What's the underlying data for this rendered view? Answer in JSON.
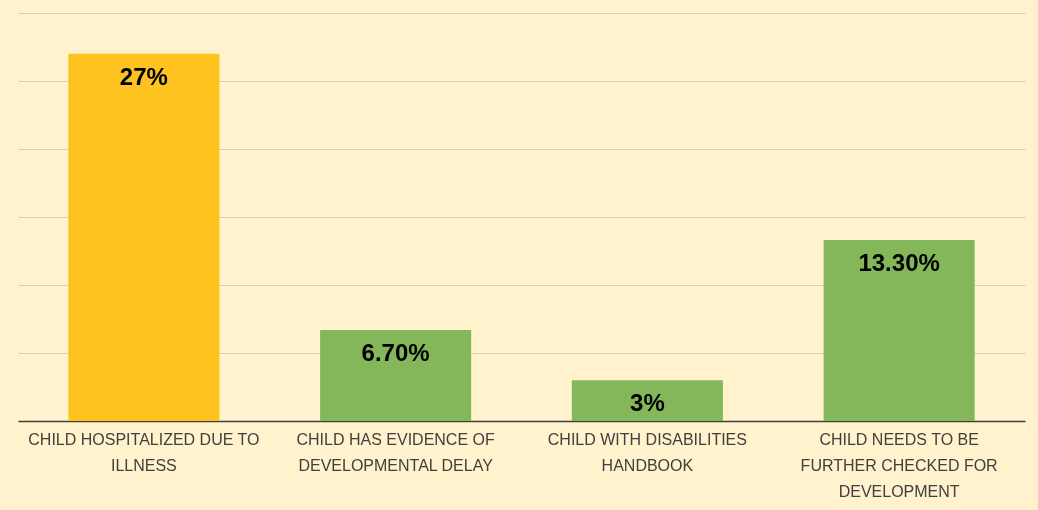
{
  "chart_data": {
    "type": "bar",
    "categories": [
      "CHILD HOSPITALIZED DUE TO ILLNESS",
      "CHILD HAS EVIDENCE OF DEVELOPMENTAL DELAY",
      "CHILD WITH DISABILITIES HANDBOOK",
      "CHILD NEEDS TO BE FURTHER CHECKED FOR DEVELOPMENT"
    ],
    "values": [
      27,
      6.7,
      3,
      13.3
    ],
    "value_labels": [
      "27%",
      "6.70%",
      "3%",
      "13.30%"
    ],
    "colors": [
      "#ffc31f",
      "#84b75a",
      "#84b75a",
      "#84b75a"
    ],
    "ylim": [
      0,
      30
    ],
    "yticks": [
      {
        "value": 0,
        "label": null
      },
      {
        "value": 5,
        "label": null
      },
      {
        "value": 10,
        "label": null
      },
      {
        "value": 15,
        "label": null
      },
      {
        "value": 20,
        "label": null
      },
      {
        "value": 25,
        "label": null
      },
      {
        "value": 30,
        "label": null
      }
    ],
    "grid": "y",
    "tick_labels": "x"
  }
}
